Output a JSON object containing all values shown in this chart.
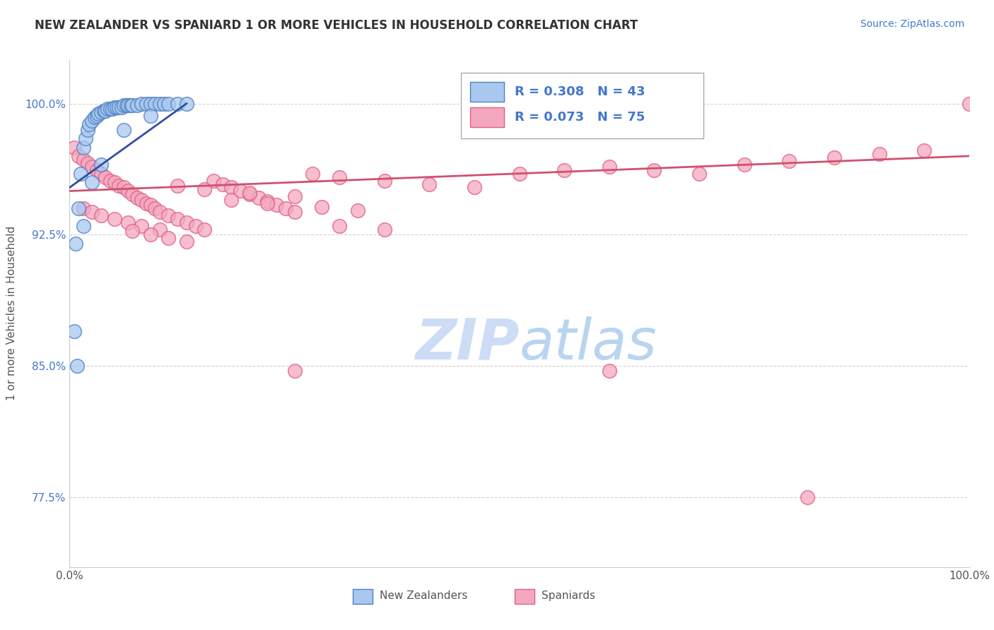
{
  "title": "NEW ZEALANDER VS SPANIARD 1 OR MORE VEHICLES IN HOUSEHOLD CORRELATION CHART",
  "source": "Source: ZipAtlas.com",
  "ylabel": "1 or more Vehicles in Household",
  "yticks": [
    0.775,
    0.85,
    0.925,
    1.0
  ],
  "ytick_labels": [
    "77.5%",
    "85.0%",
    "92.5%",
    "100.0%"
  ],
  "xrange": [
    0.0,
    1.0
  ],
  "yrange": [
    0.735,
    1.025
  ],
  "legend_label1": "New Zealanders",
  "legend_label2": "Spaniards",
  "R1": 0.308,
  "N1": 43,
  "R2": 0.073,
  "N2": 75,
  "color_nz": "#a8c8f0",
  "color_sp": "#f4a8c0",
  "color_nz_edge": "#5080c0",
  "color_sp_edge": "#e06080",
  "color_nz_line": "#3050a0",
  "color_sp_line": "#d05070",
  "watermark_color": "#ccddf5",
  "background_color": "#ffffff",
  "grid_color": "#cccccc",
  "title_color": "#333333",
  "source_color": "#4477cc",
  "ytick_color": "#4477cc",
  "nz_x": [
    0.005,
    0.007,
    0.01,
    0.012,
    0.015,
    0.018,
    0.02,
    0.022,
    0.025,
    0.028,
    0.03,
    0.032,
    0.035,
    0.038,
    0.04,
    0.042,
    0.045,
    0.048,
    0.05,
    0.052,
    0.055,
    0.058,
    0.06,
    0.063,
    0.065,
    0.068,
    0.07,
    0.075,
    0.08,
    0.085,
    0.09,
    0.095,
    0.1,
    0.105,
    0.11,
    0.12,
    0.13,
    0.008,
    0.015,
    0.025,
    0.035,
    0.06,
    0.09
  ],
  "nz_y": [
    0.87,
    0.92,
    0.94,
    0.96,
    0.975,
    0.98,
    0.985,
    0.988,
    0.99,
    0.992,
    0.993,
    0.994,
    0.995,
    0.996,
    0.996,
    0.997,
    0.997,
    0.997,
    0.998,
    0.998,
    0.998,
    0.998,
    0.999,
    0.999,
    0.999,
    0.999,
    0.999,
    0.999,
    1.0,
    1.0,
    1.0,
    1.0,
    1.0,
    1.0,
    1.0,
    1.0,
    1.0,
    0.85,
    0.93,
    0.955,
    0.965,
    0.985,
    0.993
  ],
  "sp_x": [
    0.005,
    0.01,
    0.015,
    0.02,
    0.025,
    0.03,
    0.035,
    0.04,
    0.045,
    0.05,
    0.055,
    0.06,
    0.065,
    0.07,
    0.075,
    0.08,
    0.085,
    0.09,
    0.095,
    0.1,
    0.11,
    0.12,
    0.13,
    0.14,
    0.15,
    0.16,
    0.17,
    0.18,
    0.19,
    0.2,
    0.21,
    0.22,
    0.23,
    0.24,
    0.25,
    0.27,
    0.3,
    0.35,
    0.4,
    0.45,
    0.5,
    0.55,
    0.6,
    0.65,
    0.7,
    0.75,
    0.8,
    0.85,
    0.9,
    0.95,
    1.0,
    0.015,
    0.025,
    0.035,
    0.05,
    0.065,
    0.08,
    0.1,
    0.12,
    0.15,
    0.2,
    0.25,
    0.18,
    0.22,
    0.28,
    0.32,
    0.07,
    0.09,
    0.11,
    0.13,
    0.3,
    0.35,
    0.25,
    0.82,
    0.6
  ],
  "sp_y": [
    0.975,
    0.97,
    0.968,
    0.966,
    0.964,
    0.962,
    0.96,
    0.958,
    0.956,
    0.955,
    0.953,
    0.952,
    0.95,
    0.948,
    0.946,
    0.945,
    0.943,
    0.942,
    0.94,
    0.938,
    0.936,
    0.934,
    0.932,
    0.93,
    0.928,
    0.956,
    0.954,
    0.952,
    0.95,
    0.948,
    0.946,
    0.944,
    0.942,
    0.94,
    0.938,
    0.96,
    0.958,
    0.956,
    0.954,
    0.952,
    0.96,
    0.962,
    0.964,
    0.962,
    0.96,
    0.965,
    0.967,
    0.969,
    0.971,
    0.973,
    1.0,
    0.94,
    0.938,
    0.936,
    0.934,
    0.932,
    0.93,
    0.928,
    0.953,
    0.951,
    0.949,
    0.947,
    0.945,
    0.943,
    0.941,
    0.939,
    0.927,
    0.925,
    0.923,
    0.921,
    0.93,
    0.928,
    0.847,
    0.775,
    0.847
  ],
  "nz_line_x": [
    0.0,
    0.13
  ],
  "nz_line_y": [
    0.952,
    1.0
  ],
  "sp_line_x": [
    0.0,
    1.0
  ],
  "sp_line_y": [
    0.95,
    0.97
  ]
}
